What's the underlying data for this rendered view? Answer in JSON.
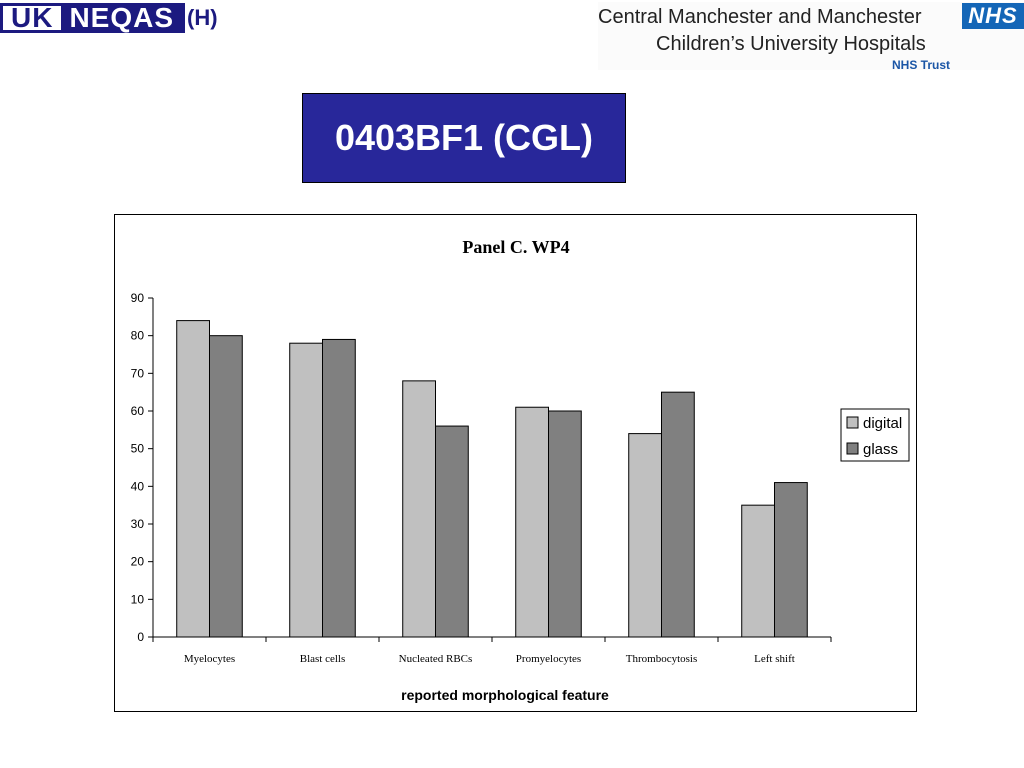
{
  "header": {
    "logo_uk": "UK",
    "logo_neqas": "NEQAS",
    "logo_suffix": "(H)",
    "trust_line1": "Central Manchester and Manchester",
    "trust_line2": "Children’s University Hospitals",
    "trust_line3": "NHS Trust",
    "nhs_badge": "NHS"
  },
  "slide_title": "0403BF1 (CGL)",
  "colors": {
    "title_bg": "#28279a",
    "digital": "#c0c0c0",
    "glass": "#808080"
  },
  "chart_data": {
    "type": "bar",
    "title": "Panel C.  WP4",
    "xlabel": "reported morphological feature",
    "ylabel": "",
    "ylim": [
      0,
      90
    ],
    "yticks": [
      0,
      10,
      20,
      30,
      40,
      50,
      60,
      70,
      80,
      90
    ],
    "categories": [
      "Myelocytes",
      "Blast cells",
      "Nucleated RBCs",
      "Promyelocytes",
      "Thrombocytosis",
      "Left shift"
    ],
    "series": [
      {
        "name": "digital",
        "values": [
          84,
          78,
          68,
          61,
          54,
          35
        ]
      },
      {
        "name": "glass",
        "values": [
          80,
          79,
          56,
          60,
          65,
          41
        ]
      }
    ],
    "legend": "right",
    "grid": false
  }
}
